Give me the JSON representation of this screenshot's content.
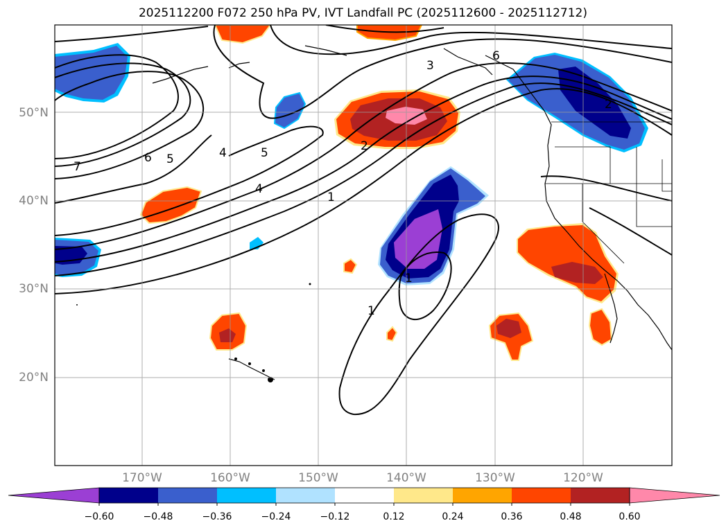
{
  "title": "2025112200 F072 250 hPa PV, IVT Landfall PC (2025112600 - 2025112712)",
  "lat_labels": [
    "50°N",
    "40°N",
    "30°N",
    "20°N"
  ],
  "lon_labels": [
    "170°W",
    "160°W",
    "150°W",
    "140°W",
    "130°W",
    "120°W"
  ],
  "contour_labels": [
    "7",
    "6",
    "5",
    "4",
    "5",
    "4",
    "3",
    "6",
    "2",
    "1",
    "1",
    "1",
    "2"
  ],
  "colorbar": {
    "ticks": [
      "−0.60",
      "−0.48",
      "−0.36",
      "−0.24",
      "−0.12",
      "0.12",
      "0.24",
      "0.36",
      "0.48",
      "0.60"
    ],
    "colors": [
      "#9b3fd4",
      "#00008b",
      "#3a5fcd",
      "#00bfff",
      "#b0e2ff",
      "#ffffff",
      "#ffe88a",
      "#ffa500",
      "#ff4500",
      "#b22222",
      "#ff88aa"
    ]
  },
  "colors": {
    "neg_purple": "#9b3fd4",
    "neg_navy": "#00008b",
    "neg_blue": "#3a5fcd",
    "neg_cyan": "#00bfff",
    "neg_light": "#b0e2ff",
    "pos_yellow": "#ffe88a",
    "pos_orange": "#ffa500",
    "pos_red": "#ff4500",
    "pos_darkred": "#b22222",
    "pos_pink": "#ff88aa"
  }
}
